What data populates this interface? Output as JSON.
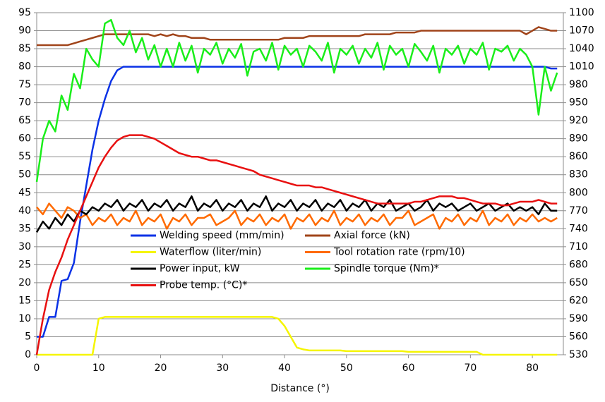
{
  "chart_data": {
    "type": "line",
    "xlabel": "Distance (°)",
    "x": [
      0,
      1,
      2,
      3,
      4,
      5,
      6,
      7,
      8,
      9,
      10,
      11,
      12,
      13,
      14,
      15,
      16,
      17,
      18,
      19,
      20,
      21,
      22,
      23,
      24,
      25,
      26,
      27,
      28,
      29,
      30,
      31,
      32,
      33,
      34,
      35,
      36,
      37,
      38,
      39,
      40,
      41,
      42,
      43,
      44,
      45,
      46,
      47,
      48,
      49,
      50,
      51,
      52,
      53,
      54,
      55,
      56,
      57,
      58,
      59,
      60,
      61,
      62,
      63,
      64,
      65,
      66,
      67,
      68,
      69,
      70,
      71,
      72,
      73,
      74,
      75,
      76,
      77,
      78,
      79,
      80,
      81,
      82,
      83,
      84
    ],
    "xlim": [
      0,
      85
    ],
    "xticks": [
      0,
      10,
      20,
      30,
      40,
      50,
      60,
      70,
      80
    ],
    "ylim": [
      0,
      95
    ],
    "yticks": [
      0,
      5,
      10,
      15,
      20,
      25,
      30,
      35,
      40,
      45,
      50,
      55,
      60,
      65,
      70,
      75,
      80,
      85,
      90,
      95
    ],
    "y2lim": [
      530,
      1100
    ],
    "y2ticks": [
      530,
      560,
      590,
      620,
      650,
      680,
      710,
      740,
      770,
      800,
      830,
      860,
      890,
      920,
      950,
      980,
      1010,
      1040,
      1070,
      1100
    ],
    "grid": true,
    "series": [
      {
        "name": "Welding speed (mm/min)",
        "color": "#0a32e6",
        "values": [
          5,
          5,
          10.5,
          10.5,
          20.5,
          21,
          25.5,
          37,
          47,
          57,
          65,
          71,
          76,
          79,
          80,
          80,
          80,
          80,
          80,
          80,
          80,
          80,
          80,
          80,
          80,
          80,
          80,
          80,
          80,
          80,
          80,
          80,
          80,
          80,
          80,
          80,
          80,
          80,
          80,
          80,
          80,
          80,
          80,
          80,
          80,
          80,
          80,
          80,
          80,
          80,
          80,
          80,
          80,
          80,
          80,
          80,
          80,
          80,
          80,
          80,
          80,
          80,
          80,
          80,
          80,
          80,
          80,
          80,
          80,
          80,
          80,
          80,
          80,
          80,
          80,
          80,
          80,
          80,
          80,
          80,
          80,
          80,
          80,
          79.5,
          79.5
        ]
      },
      {
        "name": "Axial force (kN)",
        "color": "#a0441a",
        "values": [
          86,
          86,
          86,
          86,
          86,
          86,
          86.5,
          87,
          87.5,
          88,
          88.5,
          89,
          89,
          89,
          89,
          89,
          89,
          89,
          89,
          88.5,
          89,
          88.5,
          89,
          88.5,
          88.5,
          88,
          88,
          88,
          87.5,
          87.5,
          87.5,
          87.5,
          87.5,
          87.5,
          87.5,
          87.5,
          87.5,
          87.5,
          87.5,
          87.5,
          88,
          88,
          88,
          88,
          88.5,
          88.5,
          88.5,
          88.5,
          88.5,
          88.5,
          88.5,
          88.5,
          88.5,
          89,
          89,
          89,
          89,
          89,
          89.5,
          89.5,
          89.5,
          89.5,
          90,
          90,
          90,
          90,
          90,
          90,
          90,
          90,
          90,
          90,
          90,
          90,
          90,
          90,
          90,
          90,
          90,
          89,
          90,
          91,
          90.5,
          90,
          90
        ]
      },
      {
        "name": "Waterflow (liter/min)",
        "color": "#f5f500",
        "values": [
          0,
          0,
          0,
          0,
          0,
          0,
          0,
          0,
          0,
          0,
          10,
          10.5,
          10.5,
          10.5,
          10.5,
          10.5,
          10.5,
          10.5,
          10.5,
          10.5,
          10.5,
          10.5,
          10.5,
          10.5,
          10.5,
          10.5,
          10.5,
          10.5,
          10.5,
          10.5,
          10.5,
          10.5,
          10.5,
          10.5,
          10.5,
          10.5,
          10.5,
          10.5,
          10.5,
          10,
          8,
          5,
          2,
          1.5,
          1.2,
          1.2,
          1.2,
          1.2,
          1.2,
          1.2,
          1,
          1,
          1,
          1,
          1,
          1,
          1,
          1,
          1,
          1,
          0.8,
          0.8,
          0.8,
          0.8,
          0.8,
          0.8,
          0.8,
          0.8,
          0.8,
          0.8,
          0.8,
          0.8,
          0,
          0,
          0,
          0,
          0,
          0,
          0,
          0,
          0,
          0,
          0,
          0,
          0
        ]
      },
      {
        "name": "Tool rotation rate (rpm/10)",
        "color": "#ff6a00",
        "values": [
          41,
          39,
          42,
          40,
          38,
          41,
          40,
          38,
          39,
          36,
          38,
          37,
          39,
          36,
          38,
          37,
          40,
          36,
          38,
          37,
          39,
          35,
          38,
          37,
          39,
          36,
          38,
          38,
          39,
          36,
          37,
          38,
          40,
          36,
          38,
          37,
          39,
          36,
          38,
          37,
          39,
          35,
          38,
          37,
          39,
          36,
          38,
          37,
          40,
          36,
          38,
          37,
          39,
          36,
          38,
          37,
          39,
          36,
          38,
          38,
          40,
          36,
          37,
          38,
          39,
          35,
          38,
          37,
          39,
          36,
          38,
          37,
          40,
          36,
          38,
          37,
          39,
          36,
          38,
          37,
          39,
          37,
          38,
          37,
          38
        ]
      },
      {
        "name": "Power input, kW",
        "color": "#000000",
        "values": [
          34,
          37,
          35,
          38,
          36,
          39,
          37,
          40,
          39,
          41,
          40,
          42,
          41,
          43,
          40,
          42,
          41,
          43,
          40,
          42,
          41,
          43,
          40,
          42,
          41,
          44,
          40,
          42,
          41,
          43,
          40,
          42,
          41,
          43,
          40,
          42,
          41,
          44,
          40,
          42,
          41,
          43,
          40,
          42,
          41,
          43,
          40,
          42,
          41,
          43,
          40,
          42,
          41,
          43,
          40,
          42,
          41,
          43,
          40,
          41,
          42,
          40,
          41,
          43,
          40,
          42,
          41,
          42,
          40,
          41,
          42,
          40,
          41,
          42,
          40,
          41,
          42,
          40,
          41,
          40,
          41,
          39,
          42,
          40,
          40
        ]
      },
      {
        "name": "Spindle torque (Nm)*",
        "color": "#1aee1a",
        "axis": "y2",
        "values": [
          818,
          890,
          920,
          902,
          962,
          938,
          998,
          974,
          1040,
          1022,
          1010,
          1082,
          1088,
          1058,
          1046,
          1070,
          1034,
          1058,
          1022,
          1046,
          1010,
          1040,
          1010,
          1050,
          1020,
          1045,
          1000,
          1040,
          1030,
          1050,
          1015,
          1040,
          1025,
          1048,
          995,
          1035,
          1040,
          1020,
          1050,
          1005,
          1045,
          1030,
          1040,
          1010,
          1045,
          1035,
          1020,
          1050,
          1000,
          1040,
          1030,
          1045,
          1015,
          1040,
          1025,
          1050,
          1005,
          1045,
          1030,
          1040,
          1010,
          1048,
          1035,
          1020,
          1045,
          1000,
          1040,
          1030,
          1045,
          1015,
          1040,
          1030,
          1050,
          1005,
          1040,
          1035,
          1045,
          1020,
          1040,
          1030,
          1010,
          930,
          1010,
          970,
          1000
        ]
      },
      {
        "name": "Probe temp. (°C)*",
        "color": "#e81010",
        "axis": "y2",
        "values": [
          530,
          590,
          638,
          668,
          692,
          722,
          746,
          770,
          794,
          818,
          842,
          860,
          875,
          887,
          893,
          896,
          896,
          896,
          893,
          890,
          884,
          878,
          872,
          866,
          863,
          860,
          860,
          857,
          854,
          854,
          851,
          848,
          845,
          842,
          839,
          836,
          830,
          827,
          824,
          821,
          818,
          815,
          812,
          812,
          812,
          809,
          809,
          806,
          803,
          800,
          797,
          794,
          791,
          788,
          785,
          782,
          782,
          782,
          782,
          782,
          782,
          785,
          785,
          788,
          791,
          794,
          794,
          794,
          791,
          791,
          788,
          785,
          782,
          782,
          782,
          779,
          779,
          782,
          785,
          785,
          785,
          788,
          785,
          782,
          782
        ]
      }
    ]
  }
}
